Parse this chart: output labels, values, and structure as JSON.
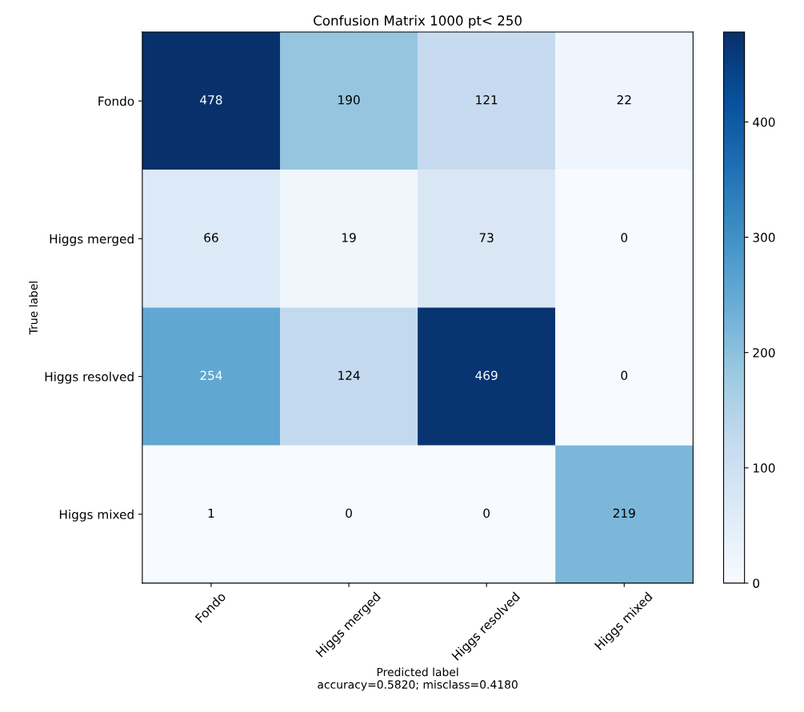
{
  "chart_data": {
    "type": "heatmap",
    "title": "Confusion Matrix 1000 pt< 250",
    "xlabel": "Predicted label\naccuracy=0.5820; misclass=0.4180",
    "ylabel": "True label",
    "categories": [
      "Fondo",
      "Higgs merged",
      "Higgs resolved",
      "Higgs mixed"
    ],
    "y_categories": [
      "Fondo",
      "Higgs merged",
      "Higgs resolved",
      "Higgs mixed"
    ],
    "cells": [
      [
        478,
        190,
        121,
        22
      ],
      [
        66,
        19,
        73,
        0
      ],
      [
        254,
        124,
        469,
        0
      ],
      [
        1,
        0,
        0,
        219
      ]
    ],
    "clim": [
      0,
      478
    ],
    "cticks": [
      0,
      100,
      200,
      300,
      400
    ],
    "data_labels": true
  }
}
